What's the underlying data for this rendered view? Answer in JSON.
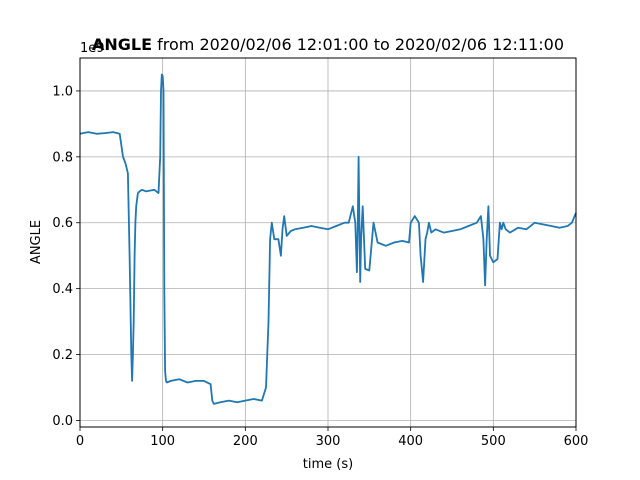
{
  "chart_data": {
    "type": "line",
    "title_bold": "ANGLE",
    "title_rest": " from 2020/02/06 12:01:00 to 2020/02/06 12:11:00",
    "xlabel": "time (s)",
    "ylabel": "ANGLE",
    "offset_label": "1e9",
    "xlim": [
      0,
      600
    ],
    "ylim": [
      -0.02,
      1.1
    ],
    "grid": true,
    "x_ticks": [
      0,
      100,
      200,
      300,
      400,
      500,
      600
    ],
    "x_tick_labels": [
      "0",
      "100",
      "200",
      "300",
      "400",
      "500",
      "600"
    ],
    "y_ticks": [
      0.0,
      0.2,
      0.4,
      0.6,
      0.8,
      1.0
    ],
    "y_tick_labels": [
      "0.0",
      "0.2",
      "0.4",
      "0.6",
      "0.8",
      "1.0"
    ],
    "line_color": "#1f77b4",
    "series": [
      {
        "x": [
          0,
          10,
          20,
          30,
          40,
          48,
          52,
          55,
          58,
          60,
          62,
          63,
          64,
          65,
          66,
          67,
          68,
          70,
          72,
          75,
          80,
          90,
          95,
          97,
          98,
          99,
          100,
          101,
          102,
          103,
          104,
          105,
          110,
          120,
          130,
          140,
          150,
          158,
          160,
          162,
          170,
          180,
          190,
          200,
          210,
          220,
          225,
          228,
          230,
          232,
          235,
          240,
          243,
          245,
          247,
          250,
          255,
          260,
          270,
          280,
          290,
          300,
          310,
          320,
          325,
          330,
          333,
          335,
          336,
          337,
          338,
          339,
          340,
          342,
          345,
          350,
          355,
          360,
          370,
          380,
          390,
          398,
          400,
          405,
          410,
          412,
          415,
          418,
          420,
          422,
          425,
          430,
          440,
          450,
          460,
          470,
          480,
          485,
          488,
          490,
          492,
          494,
          496,
          500,
          505,
          508,
          510,
          512,
          515,
          520,
          530,
          540,
          550,
          560,
          570,
          580,
          590,
          595,
          600
        ],
        "y": [
          0.87,
          0.875,
          0.87,
          0.872,
          0.875,
          0.87,
          0.8,
          0.78,
          0.75,
          0.5,
          0.2,
          0.12,
          0.2,
          0.3,
          0.5,
          0.6,
          0.65,
          0.69,
          0.695,
          0.7,
          0.695,
          0.7,
          0.69,
          0.8,
          1.0,
          1.05,
          1.045,
          1.0,
          0.4,
          0.15,
          0.12,
          0.115,
          0.12,
          0.125,
          0.115,
          0.12,
          0.12,
          0.11,
          0.06,
          0.05,
          0.055,
          0.06,
          0.055,
          0.06,
          0.065,
          0.06,
          0.1,
          0.3,
          0.55,
          0.6,
          0.55,
          0.55,
          0.5,
          0.58,
          0.62,
          0.56,
          0.575,
          0.58,
          0.585,
          0.59,
          0.585,
          0.58,
          0.59,
          0.6,
          0.6,
          0.65,
          0.6,
          0.45,
          0.6,
          0.8,
          0.6,
          0.42,
          0.55,
          0.65,
          0.46,
          0.455,
          0.6,
          0.54,
          0.53,
          0.54,
          0.545,
          0.54,
          0.6,
          0.62,
          0.6,
          0.5,
          0.42,
          0.55,
          0.57,
          0.6,
          0.57,
          0.58,
          0.57,
          0.575,
          0.58,
          0.59,
          0.6,
          0.62,
          0.55,
          0.41,
          0.55,
          0.65,
          0.5,
          0.48,
          0.49,
          0.6,
          0.58,
          0.6,
          0.58,
          0.57,
          0.585,
          0.58,
          0.6,
          0.595,
          0.59,
          0.585,
          0.59,
          0.6,
          0.63
        ]
      }
    ]
  }
}
